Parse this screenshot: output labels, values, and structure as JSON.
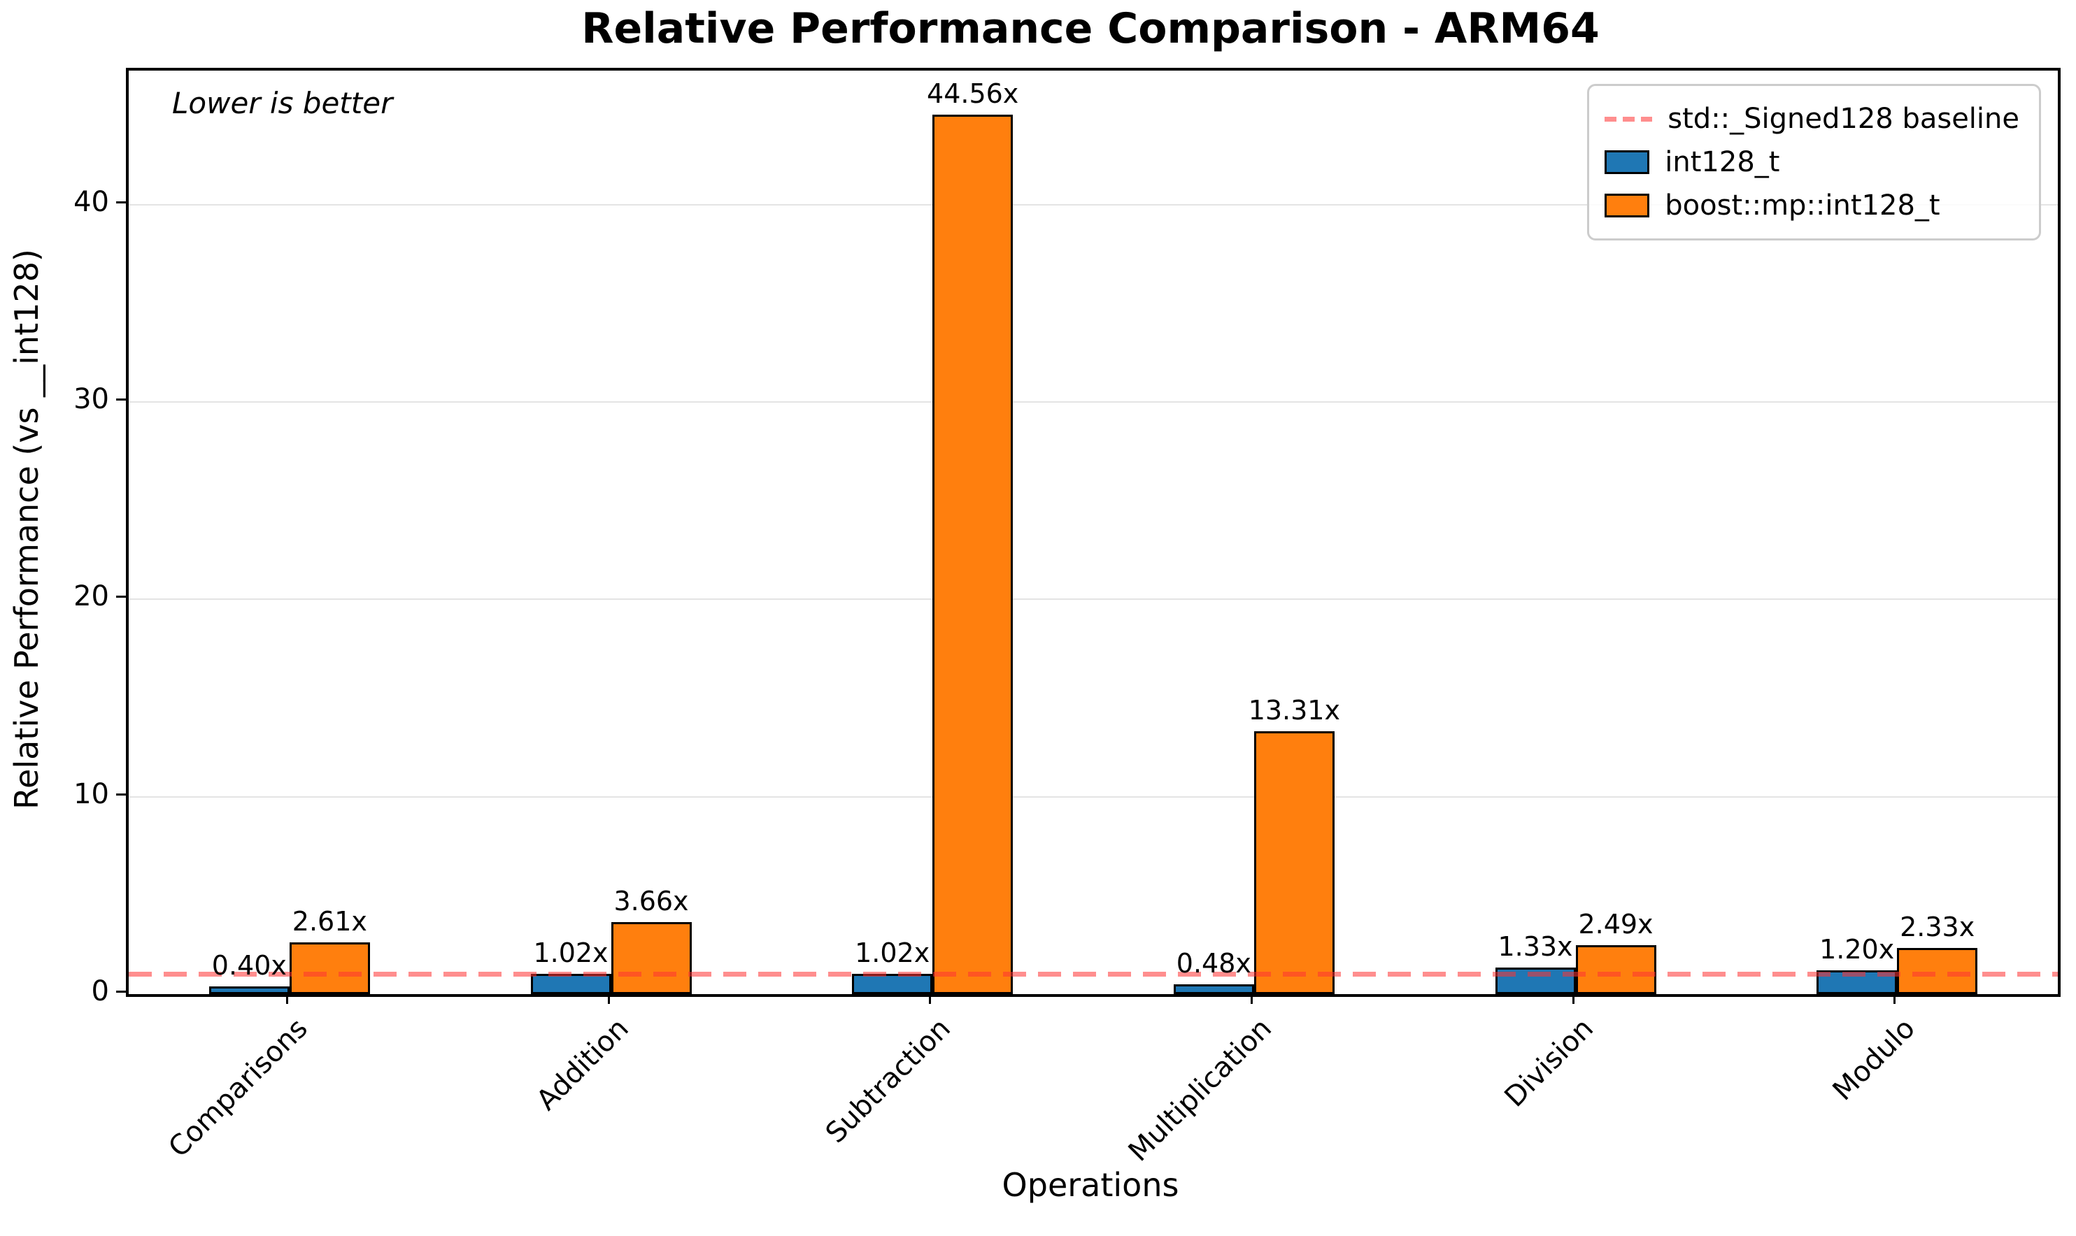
{
  "chart_data": {
    "type": "bar",
    "title": "Relative Performance Comparison - ARM64",
    "xlabel": "Operations",
    "ylabel": "Relative Performance (vs __int128)",
    "annotation": "Lower is better",
    "categories": [
      "Comparisons",
      "Addition",
      "Subtraction",
      "Multiplication",
      "Division",
      "Modulo"
    ],
    "series": [
      {
        "name": "int128_t",
        "color": "#1f77b4",
        "values": [
          0.4,
          1.02,
          1.02,
          0.48,
          1.33,
          1.2
        ],
        "value_labels": [
          "0.40x",
          "1.02x",
          "1.02x",
          "0.48x",
          "1.33x",
          "1.20x"
        ]
      },
      {
        "name": "boost::mp::int128_t",
        "color": "#ff7f0e",
        "values": [
          2.61,
          3.66,
          44.56,
          13.31,
          2.49,
          2.33
        ],
        "value_labels": [
          "2.61x",
          "3.66x",
          "44.56x",
          "13.31x",
          "2.49x",
          "2.33x"
        ]
      }
    ],
    "baseline": {
      "value": 1,
      "label": "std::_Signed128 baseline",
      "color": "#ff5050",
      "style": "dashed"
    },
    "yticks": [
      0,
      10,
      20,
      30,
      40
    ],
    "ylim": [
      0,
      46.8
    ],
    "grid": "horizontal",
    "legend_position": "upper-right",
    "bar_edge_color": "#000000"
  }
}
